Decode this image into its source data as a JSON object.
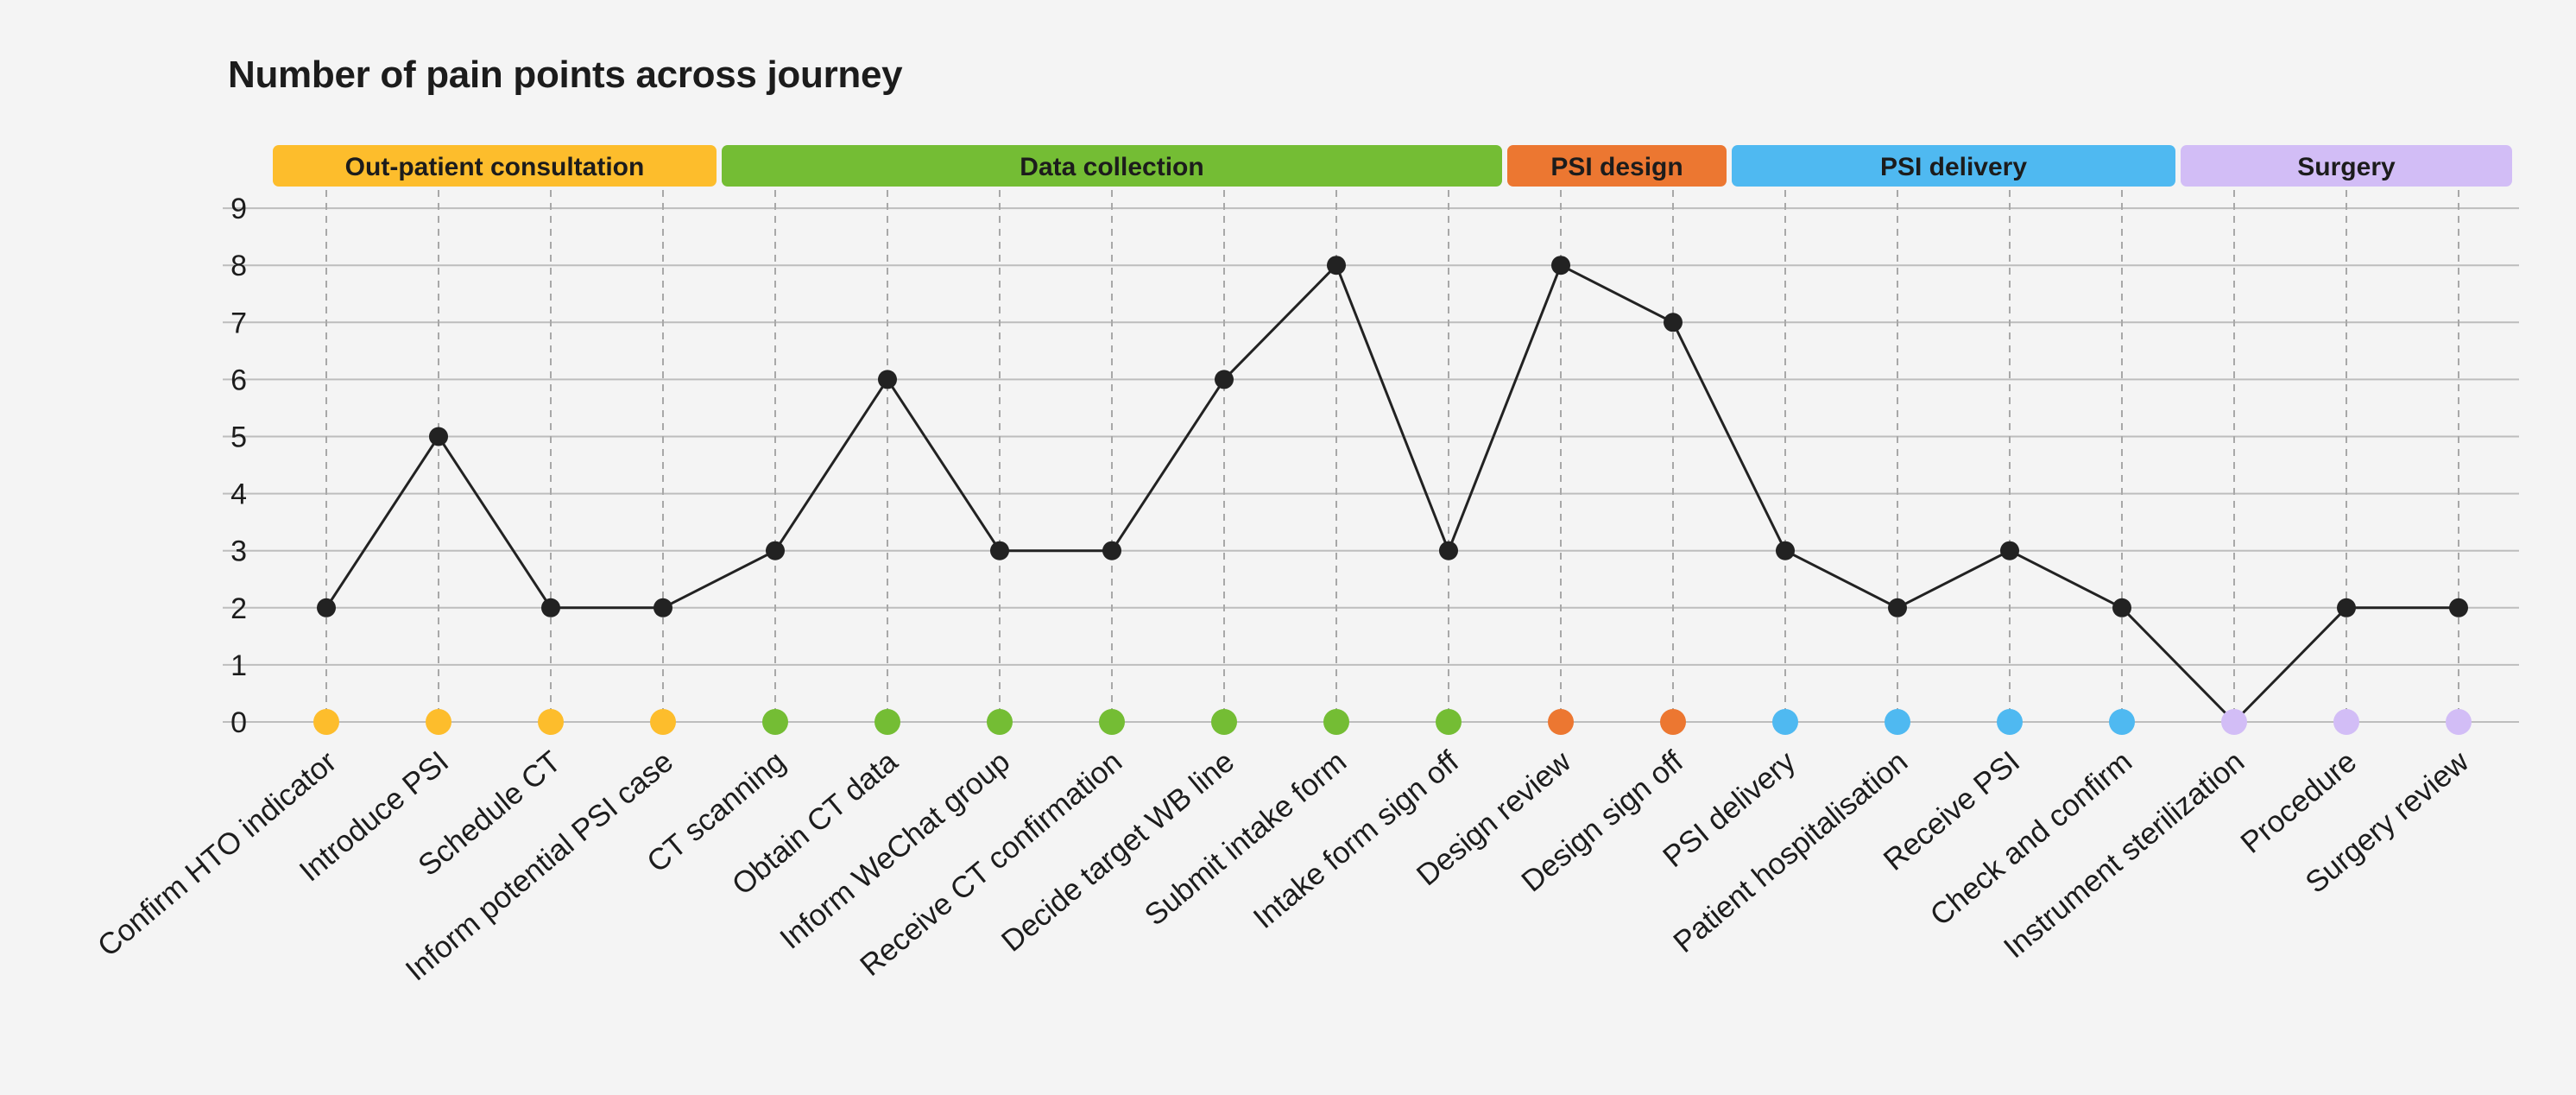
{
  "chart_data": {
    "type": "line",
    "title": "Number of pain points across journey",
    "xlabel": "",
    "ylabel": "",
    "ylim": [
      0,
      9
    ],
    "yticks": [
      0,
      1,
      2,
      3,
      4,
      5,
      6,
      7,
      8,
      9
    ],
    "grid": true,
    "categories": [
      "Confirm HTO indicator",
      "Introduce PSI",
      "Schedule CT",
      "Inform potential PSI case",
      "CT scanning",
      "Obtain CT data",
      "Inform WeChat group",
      "Receive CT confirmation",
      "Decide target WB line",
      "Submit intake form",
      "Intake form sign off",
      "Design review",
      "Design sign off",
      "PSI delivery",
      "Patient hospitalisation",
      "Receive PSI",
      "Check and confirm",
      "Instrument sterilization",
      "Procedure",
      "Surgery review"
    ],
    "series": [
      {
        "values": [
          2,
          5,
          2,
          2,
          3,
          6,
          3,
          3,
          6,
          8,
          3,
          8,
          7,
          3,
          2,
          3,
          2,
          0,
          2,
          2
        ],
        "color": "#222222"
      }
    ],
    "stages": [
      {
        "label": "Out-patient consultation",
        "start": 0,
        "end": 3,
        "color": "#fdbd2c",
        "text_color": "#1c1c1c"
      },
      {
        "label": "Data collection",
        "start": 4,
        "end": 10,
        "color": "#74bd34",
        "text_color": "#1c1c1c"
      },
      {
        "label": "PSI design",
        "start": 11,
        "end": 12,
        "color": "#ec7731",
        "text_color": "#1c1c1c"
      },
      {
        "label": "PSI delivery",
        "start": 13,
        "end": 16,
        "color": "#4fb9f1",
        "text_color": "#1c1c1c"
      },
      {
        "label": "Surgery",
        "start": 17,
        "end": 19,
        "color": "#d2bdf6",
        "text_color": "#1c1c1c"
      }
    ]
  }
}
